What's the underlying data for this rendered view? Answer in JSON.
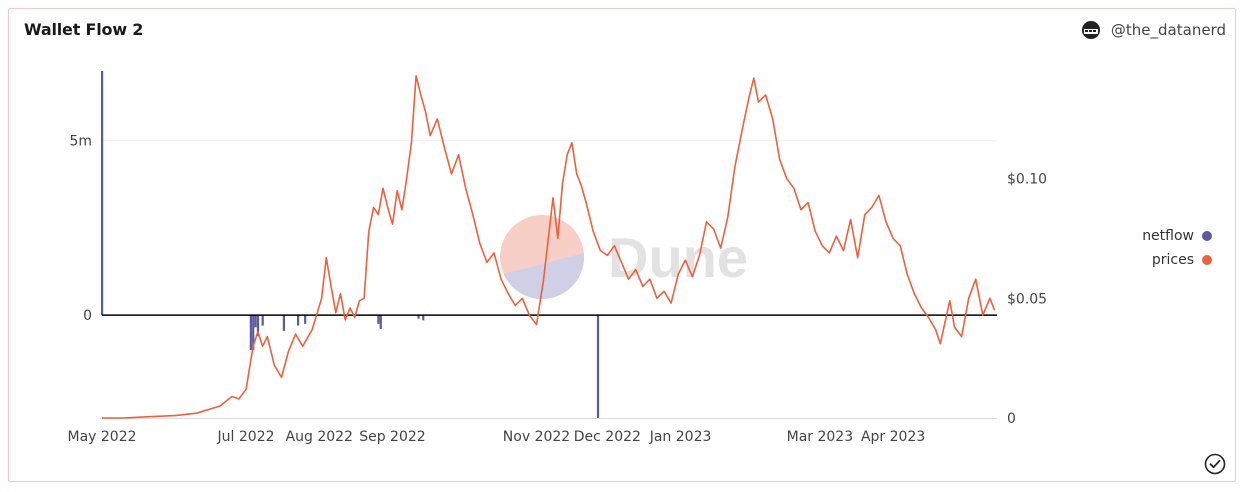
{
  "header": {
    "title": "Wallet Flow 2",
    "author": "@the_datanerd"
  },
  "watermark": "Dune",
  "legend": {
    "items": [
      {
        "label": "netflow",
        "color": "#5a5b9f"
      },
      {
        "label": "prices",
        "color": "#e9623f"
      }
    ]
  },
  "colors": {
    "netflow": "#5a5b9f",
    "prices": "#e9623f",
    "zero_line": "#000000",
    "grid": "#eeeeee"
  },
  "chart_data": {
    "type": "bar+line",
    "x_ticks": [
      "May 2022",
      "Jul 2022",
      "Aug 2022",
      "Sep 2022",
      "Nov 2022",
      "Dec 2022",
      "Jan 2023",
      "Mar 2023",
      "Apr 2023"
    ],
    "x_tick_dates": [
      "2022-05-01",
      "2022-07-01",
      "2022-08-01",
      "2022-09-01",
      "2022-11-01",
      "2022-12-01",
      "2023-01-01",
      "2023-03-01",
      "2023-04-01"
    ],
    "xlim": [
      "2022-05-01",
      "2023-05-15"
    ],
    "left_axis": {
      "ticks": [
        "0",
        "5m"
      ],
      "tick_values": [
        0,
        5000000
      ],
      "ylim": [
        -2950000,
        7000000
      ]
    },
    "right_axis": {
      "ticks": [
        "0",
        "$0.05",
        "$0.10"
      ],
      "tick_values": [
        0,
        0.05,
        0.1
      ],
      "ylim": [
        0,
        0.145
      ]
    },
    "series": [
      {
        "name": "netflow",
        "axis": "left",
        "kind": "bar",
        "points": [
          [
            "2022-05-01",
            7000000
          ],
          [
            "2022-07-03",
            -1000000
          ],
          [
            "2022-07-04",
            -1000000
          ],
          [
            "2022-07-05",
            -350000
          ],
          [
            "2022-07-06",
            -600000
          ],
          [
            "2022-07-08",
            -300000
          ],
          [
            "2022-07-17",
            -450000
          ],
          [
            "2022-07-23",
            -300000
          ],
          [
            "2022-07-26",
            -250000
          ],
          [
            "2022-08-26",
            -250000
          ],
          [
            "2022-08-27",
            -400000
          ],
          [
            "2022-09-12",
            -100000
          ],
          [
            "2022-09-14",
            -150000
          ],
          [
            "2022-11-27",
            -2950000
          ]
        ]
      },
      {
        "name": "prices",
        "axis": "right",
        "kind": "line",
        "points": [
          [
            "2022-05-01",
            0.0
          ],
          [
            "2022-05-10",
            0.0
          ],
          [
            "2022-05-20",
            0.0005
          ],
          [
            "2022-06-01",
            0.001
          ],
          [
            "2022-06-10",
            0.002
          ],
          [
            "2022-06-20",
            0.005
          ],
          [
            "2022-06-25",
            0.009
          ],
          [
            "2022-06-28",
            0.008
          ],
          [
            "2022-07-01",
            0.012
          ],
          [
            "2022-07-04",
            0.03
          ],
          [
            "2022-07-06",
            0.036
          ],
          [
            "2022-07-08",
            0.03
          ],
          [
            "2022-07-10",
            0.034
          ],
          [
            "2022-07-13",
            0.022
          ],
          [
            "2022-07-16",
            0.017
          ],
          [
            "2022-07-19",
            0.028
          ],
          [
            "2022-07-22",
            0.035
          ],
          [
            "2022-07-25",
            0.03
          ],
          [
            "2022-07-29",
            0.037
          ],
          [
            "2022-08-02",
            0.05
          ],
          [
            "2022-08-04",
            0.067
          ],
          [
            "2022-08-06",
            0.055
          ],
          [
            "2022-08-08",
            0.044
          ],
          [
            "2022-08-10",
            0.052
          ],
          [
            "2022-08-12",
            0.041
          ],
          [
            "2022-08-14",
            0.046
          ],
          [
            "2022-08-16",
            0.042
          ],
          [
            "2022-08-18",
            0.049
          ],
          [
            "2022-08-20",
            0.05
          ],
          [
            "2022-08-22",
            0.078
          ],
          [
            "2022-08-24",
            0.088
          ],
          [
            "2022-08-26",
            0.085
          ],
          [
            "2022-08-28",
            0.096
          ],
          [
            "2022-08-30",
            0.088
          ],
          [
            "2022-09-01",
            0.081
          ],
          [
            "2022-09-03",
            0.095
          ],
          [
            "2022-09-05",
            0.087
          ],
          [
            "2022-09-07",
            0.1
          ],
          [
            "2022-09-09",
            0.115
          ],
          [
            "2022-09-11",
            0.143
          ],
          [
            "2022-09-13",
            0.135
          ],
          [
            "2022-09-15",
            0.128
          ],
          [
            "2022-09-17",
            0.118
          ],
          [
            "2022-09-20",
            0.125
          ],
          [
            "2022-09-23",
            0.113
          ],
          [
            "2022-09-26",
            0.102
          ],
          [
            "2022-09-29",
            0.11
          ],
          [
            "2022-10-02",
            0.096
          ],
          [
            "2022-10-05",
            0.085
          ],
          [
            "2022-10-08",
            0.073
          ],
          [
            "2022-10-11",
            0.065
          ],
          [
            "2022-10-14",
            0.069
          ],
          [
            "2022-10-17",
            0.058
          ],
          [
            "2022-10-20",
            0.052
          ],
          [
            "2022-10-23",
            0.047
          ],
          [
            "2022-10-26",
            0.05
          ],
          [
            "2022-10-29",
            0.043
          ],
          [
            "2022-11-01",
            0.039
          ],
          [
            "2022-11-04",
            0.058
          ],
          [
            "2022-11-06",
            0.075
          ],
          [
            "2022-11-08",
            0.092
          ],
          [
            "2022-11-10",
            0.075
          ],
          [
            "2022-11-12",
            0.098
          ],
          [
            "2022-11-14",
            0.11
          ],
          [
            "2022-11-16",
            0.115
          ],
          [
            "2022-11-18",
            0.102
          ],
          [
            "2022-11-20",
            0.097
          ],
          [
            "2022-11-22",
            0.09
          ],
          [
            "2022-11-25",
            0.078
          ],
          [
            "2022-11-28",
            0.07
          ],
          [
            "2022-12-01",
            0.068
          ],
          [
            "2022-12-04",
            0.072
          ],
          [
            "2022-12-07",
            0.065
          ],
          [
            "2022-12-10",
            0.058
          ],
          [
            "2022-12-13",
            0.062
          ],
          [
            "2022-12-16",
            0.055
          ],
          [
            "2022-12-19",
            0.058
          ],
          [
            "2022-12-22",
            0.05
          ],
          [
            "2022-12-25",
            0.053
          ],
          [
            "2022-12-28",
            0.048
          ],
          [
            "2022-12-31",
            0.06
          ],
          [
            "2023-01-03",
            0.066
          ],
          [
            "2023-01-06",
            0.059
          ],
          [
            "2023-01-09",
            0.068
          ],
          [
            "2023-01-12",
            0.082
          ],
          [
            "2023-01-15",
            0.079
          ],
          [
            "2023-01-18",
            0.071
          ],
          [
            "2023-01-21",
            0.084
          ],
          [
            "2023-01-24",
            0.105
          ],
          [
            "2023-01-27",
            0.12
          ],
          [
            "2023-01-30",
            0.134
          ],
          [
            "2023-02-01",
            0.142
          ],
          [
            "2023-02-03",
            0.132
          ],
          [
            "2023-02-06",
            0.135
          ],
          [
            "2023-02-09",
            0.125
          ],
          [
            "2023-02-12",
            0.108
          ],
          [
            "2023-02-15",
            0.1
          ],
          [
            "2023-02-18",
            0.096
          ],
          [
            "2023-02-21",
            0.087
          ],
          [
            "2023-02-24",
            0.09
          ],
          [
            "2023-02-27",
            0.078
          ],
          [
            "2023-03-02",
            0.072
          ],
          [
            "2023-03-05",
            0.069
          ],
          [
            "2023-03-08",
            0.076
          ],
          [
            "2023-03-11",
            0.07
          ],
          [
            "2023-03-14",
            0.083
          ],
          [
            "2023-03-17",
            0.067
          ],
          [
            "2023-03-20",
            0.085
          ],
          [
            "2023-03-23",
            0.088
          ],
          [
            "2023-03-26",
            0.093
          ],
          [
            "2023-03-29",
            0.082
          ],
          [
            "2023-04-01",
            0.075
          ],
          [
            "2023-04-04",
            0.072
          ],
          [
            "2023-04-07",
            0.06
          ],
          [
            "2023-04-10",
            0.052
          ],
          [
            "2023-04-13",
            0.046
          ],
          [
            "2023-04-16",
            0.042
          ],
          [
            "2023-04-19",
            0.037
          ],
          [
            "2023-04-21",
            0.031
          ],
          [
            "2023-04-23",
            0.04
          ],
          [
            "2023-04-25",
            0.049
          ],
          [
            "2023-04-27",
            0.038
          ],
          [
            "2023-04-30",
            0.034
          ],
          [
            "2023-05-03",
            0.05
          ],
          [
            "2023-05-06",
            0.058
          ],
          [
            "2023-05-09",
            0.043
          ],
          [
            "2023-05-12",
            0.05
          ],
          [
            "2023-05-14",
            0.045
          ]
        ]
      }
    ],
    "grid": true,
    "legend_position": "right"
  }
}
